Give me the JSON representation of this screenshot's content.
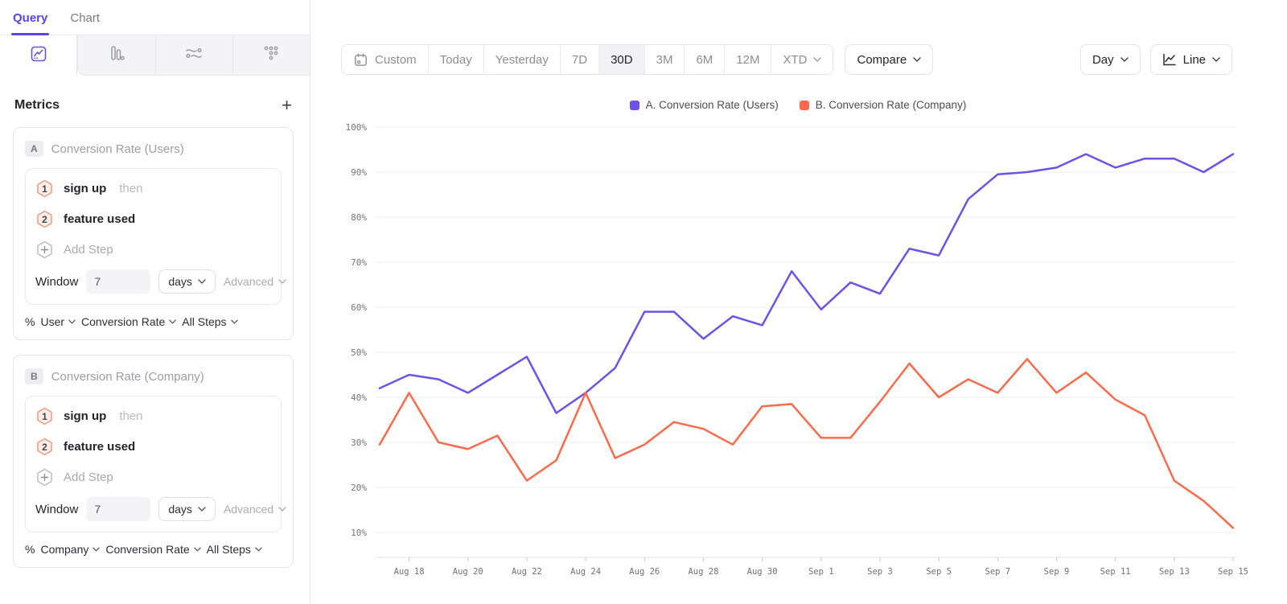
{
  "sidebar": {
    "query_tab": "Query",
    "chart_tab": "Chart",
    "metrics_title": "Metrics",
    "add_metric_label": "+",
    "cards": [
      {
        "badge": "A",
        "name": "Conversion Rate (Users)",
        "step1_num": "1",
        "step1_label": "sign up",
        "step1_suffix": "then",
        "step2_num": "2",
        "step2_label": "feature used",
        "add_step": "Add Step",
        "window_label": "Window",
        "window_value": "7",
        "window_unit": "days",
        "advanced": "Advanced",
        "measure_prefix": "%",
        "measure_entity": "User",
        "measure_metric": "Conversion Rate",
        "measure_scope": "All Steps"
      },
      {
        "badge": "B",
        "name": "Conversion Rate (Company)",
        "step1_num": "1",
        "step1_label": "sign up",
        "step1_suffix": "then",
        "step2_num": "2",
        "step2_label": "feature used",
        "add_step": "Add Step",
        "window_label": "Window",
        "window_value": "7",
        "window_unit": "days",
        "advanced": "Advanced",
        "measure_prefix": "%",
        "measure_entity": "Company",
        "measure_metric": "Conversion Rate",
        "measure_scope": "All Steps"
      }
    ]
  },
  "toolbar": {
    "ranges": [
      "Custom",
      "Today",
      "Yesterday",
      "7D",
      "30D",
      "3M",
      "6M",
      "12M",
      "XTD"
    ],
    "active_range": "30D",
    "compare": "Compare",
    "granularity": "Day",
    "chart_style": "Line"
  },
  "legend": {
    "series_a": "A. Conversion Rate (Users)",
    "series_b": "B. Conversion Rate (Company)"
  },
  "colors": {
    "accent_purple": "#6C52E9",
    "series_orange": "#F96B4C"
  },
  "chart_data": {
    "type": "line",
    "x": [
      "Aug 17",
      "Aug 18",
      "Aug 19",
      "Aug 20",
      "Aug 21",
      "Aug 22",
      "Aug 23",
      "Aug 24",
      "Aug 25",
      "Aug 26",
      "Aug 27",
      "Aug 28",
      "Aug 29",
      "Aug 30",
      "Aug 31",
      "Sep 1",
      "Sep 2",
      "Sep 3",
      "Sep 4",
      "Sep 5",
      "Sep 6",
      "Sep 7",
      "Sep 8",
      "Sep 9",
      "Sep 10",
      "Sep 11",
      "Sep 12",
      "Sep 13",
      "Sep 14",
      "Sep 15"
    ],
    "x_tick_every": 2,
    "series": [
      {
        "name": "A. Conversion Rate (Users)",
        "color": "#6C52E9",
        "values": [
          42,
          45,
          44,
          41,
          45,
          49,
          36.5,
          41,
          46.5,
          59,
          59,
          53,
          58,
          56,
          68,
          59.5,
          65.5,
          63,
          73,
          71.5,
          84,
          89.5,
          90,
          91,
          94,
          91,
          93,
          93,
          90,
          94
        ]
      },
      {
        "name": "B. Conversion Rate (Company)",
        "color": "#F96B4C",
        "values": [
          29.5,
          41,
          30,
          28.5,
          31.5,
          21.5,
          26,
          41,
          26.5,
          29.5,
          34.5,
          33,
          29.5,
          38,
          38.5,
          31,
          31,
          39,
          47.5,
          40,
          44,
          41,
          48.5,
          41,
          45.5,
          39.5,
          36,
          21.5,
          17,
          11
        ]
      }
    ],
    "ymin": 10,
    "ymax": 100,
    "y_step": 10,
    "y_unit": "%",
    "grid": true,
    "legend_position": "top-center",
    "title": ""
  }
}
